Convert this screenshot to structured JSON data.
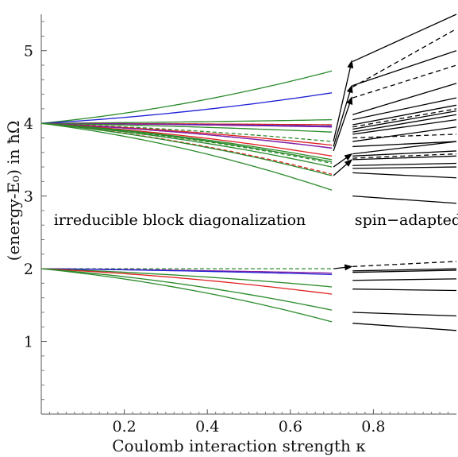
{
  "chart_data": {
    "type": "line",
    "xlabel": "Coulomb interaction strength κ",
    "ylabel": "(energy-E₀) in ħΩ",
    "xlim": [
      0,
      1
    ],
    "ylim": [
      0,
      5.5
    ],
    "xticks": [
      0.2,
      0.4,
      0.6,
      0.8
    ],
    "xtick_labels": [
      "0.2",
      "0.4",
      "0.6",
      "0.8"
    ],
    "yticks": [
      1,
      2,
      3,
      4,
      5
    ],
    "ytick_labels": [
      "1",
      "2",
      "3",
      "4",
      "5"
    ],
    "annotations": [
      {
        "text": "irreducible block diagonalization",
        "x": 0.03,
        "y": 2.6
      },
      {
        "text": "spin−adapted CI",
        "x": 0.755,
        "y": 2.6
      }
    ],
    "ibd_range": [
      0,
      0.7
    ],
    "ci_range": [
      0.75,
      1.0
    ],
    "colors": {
      "green": "#2a8a2a",
      "blue": "#1f1fd6",
      "red": "#e02020",
      "purple": "#8a1fa0",
      "black": "#000000"
    },
    "ibd_series": [
      {
        "color": "green",
        "dashed": false,
        "y0": 4,
        "y_end": 4.72
      },
      {
        "color": "blue",
        "dashed": false,
        "y0": 4,
        "y_end": 4.42
      },
      {
        "color": "green",
        "dashed": false,
        "y0": 4,
        "y_end": 4.05
      },
      {
        "color": "green",
        "dashed": true,
        "y0": 4,
        "y_end": 3.98
      },
      {
        "color": "red",
        "dashed": false,
        "y0": 4,
        "y_end": 3.98
      },
      {
        "color": "blue",
        "dashed": false,
        "y0": 4,
        "y_end": 3.96
      },
      {
        "color": "purple",
        "dashed": false,
        "y0": 4,
        "y_end": 3.95
      },
      {
        "color": "green",
        "dashed": false,
        "y0": 4,
        "y_end": 3.88
      },
      {
        "color": "green",
        "dashed": true,
        "y0": 4,
        "y_end": 3.75
      },
      {
        "color": "red",
        "dashed": false,
        "y0": 4,
        "y_end": 3.7
      },
      {
        "color": "blue",
        "dashed": false,
        "y0": 4,
        "y_end": 3.66
      },
      {
        "color": "purple",
        "dashed": false,
        "y0": 4,
        "y_end": 3.66
      },
      {
        "color": "red",
        "dashed": false,
        "y0": 4,
        "y_end": 3.55
      },
      {
        "color": "green",
        "dashed": false,
        "y0": 4,
        "y_end": 3.5
      },
      {
        "color": "green",
        "dashed": false,
        "y0": 4,
        "y_end": 3.47
      },
      {
        "color": "green",
        "dashed": true,
        "y0": 4,
        "y_end": 3.45
      },
      {
        "color": "green",
        "dashed": false,
        "y0": 4,
        "y_end": 3.4
      },
      {
        "color": "red",
        "dashed": true,
        "y0": 4,
        "y_end": 3.3
      },
      {
        "color": "green",
        "dashed": false,
        "y0": 4,
        "y_end": 3.28
      },
      {
        "color": "green",
        "dashed": false,
        "y0": 4,
        "y_end": 3.08
      },
      {
        "color": "green",
        "dashed": true,
        "y0": 2,
        "y_end": 2.0
      },
      {
        "color": "purple",
        "dashed": false,
        "y0": 2,
        "y_end": 1.94
      },
      {
        "color": "blue",
        "dashed": false,
        "y0": 2,
        "y_end": 1.92
      },
      {
        "color": "green",
        "dashed": false,
        "y0": 2,
        "y_end": 1.75
      },
      {
        "color": "red",
        "dashed": false,
        "y0": 2,
        "y_end": 1.65
      },
      {
        "color": "green",
        "dashed": false,
        "y0": 2,
        "y_end": 1.43
      },
      {
        "color": "green",
        "dashed": false,
        "y0": 2,
        "y_end": 1.27
      }
    ],
    "ci_series": [
      {
        "dashed": false,
        "y_start": 4.85,
        "y_end": 5.5
      },
      {
        "dashed": true,
        "y_start": 4.5,
        "y_end": 5.3
      },
      {
        "dashed": false,
        "y_start": 4.52,
        "y_end": 5.0
      },
      {
        "dashed": true,
        "y_start": 4.35,
        "y_end": 4.8
      },
      {
        "dashed": false,
        "y_start": 4.12,
        "y_end": 4.55
      },
      {
        "dashed": false,
        "y_start": 4.05,
        "y_end": 4.35
      },
      {
        "dashed": false,
        "y_start": 3.98,
        "y_end": 4.25
      },
      {
        "dashed": true,
        "y_start": 3.95,
        "y_end": 4.2
      },
      {
        "dashed": false,
        "y_start": 3.92,
        "y_end": 4.17
      },
      {
        "dashed": false,
        "y_start": 3.88,
        "y_end": 4.12
      },
      {
        "dashed": false,
        "y_start": 3.85,
        "y_end": 4.05
      },
      {
        "dashed": true,
        "y_start": 3.8,
        "y_end": 3.85
      },
      {
        "dashed": false,
        "y_start": 3.75,
        "y_end": 3.95
      },
      {
        "dashed": false,
        "y_start": 3.68,
        "y_end": 3.75
      },
      {
        "dashed": false,
        "y_start": 3.58,
        "y_end": 3.75
      },
      {
        "dashed": false,
        "y_start": 3.55,
        "y_end": 3.62
      },
      {
        "dashed": true,
        "y_start": 3.52,
        "y_end": 3.58
      },
      {
        "dashed": false,
        "y_start": 3.5,
        "y_end": 3.55
      },
      {
        "dashed": false,
        "y_start": 3.42,
        "y_end": 3.45
      },
      {
        "dashed": false,
        "y_start": 3.38,
        "y_end": 3.4
      },
      {
        "dashed": false,
        "y_start": 3.32,
        "y_end": 3.25
      },
      {
        "dashed": false,
        "y_start": 3.0,
        "y_end": 2.9
      },
      {
        "dashed": true,
        "y_start": 2.03,
        "y_end": 2.1
      },
      {
        "dashed": false,
        "y_start": 1.97,
        "y_end": 2.0
      },
      {
        "dashed": false,
        "y_start": 1.95,
        "y_end": 1.98
      },
      {
        "dashed": false,
        "y_start": 1.84,
        "y_end": 1.86
      },
      {
        "dashed": false,
        "y_start": 1.72,
        "y_end": 1.7
      },
      {
        "dashed": false,
        "y_start": 1.4,
        "y_end": 1.35
      },
      {
        "dashed": false,
        "y_start": 1.25,
        "y_end": 1.15
      }
    ],
    "arrows": [
      {
        "from": [
          0.7,
          3.75
        ],
        "to": [
          0.75,
          4.86
        ]
      },
      {
        "from": [
          0.7,
          3.68
        ],
        "to": [
          0.75,
          4.52
        ]
      },
      {
        "from": [
          0.7,
          3.62
        ],
        "to": [
          0.75,
          4.36
        ]
      },
      {
        "from": [
          0.7,
          3.4
        ],
        "to": [
          0.75,
          3.58
        ]
      },
      {
        "from": [
          0.7,
          3.28
        ],
        "to": [
          0.75,
          3.5
        ]
      },
      {
        "from": [
          0.7,
          2.0
        ],
        "to": [
          0.75,
          2.03
        ]
      }
    ]
  }
}
